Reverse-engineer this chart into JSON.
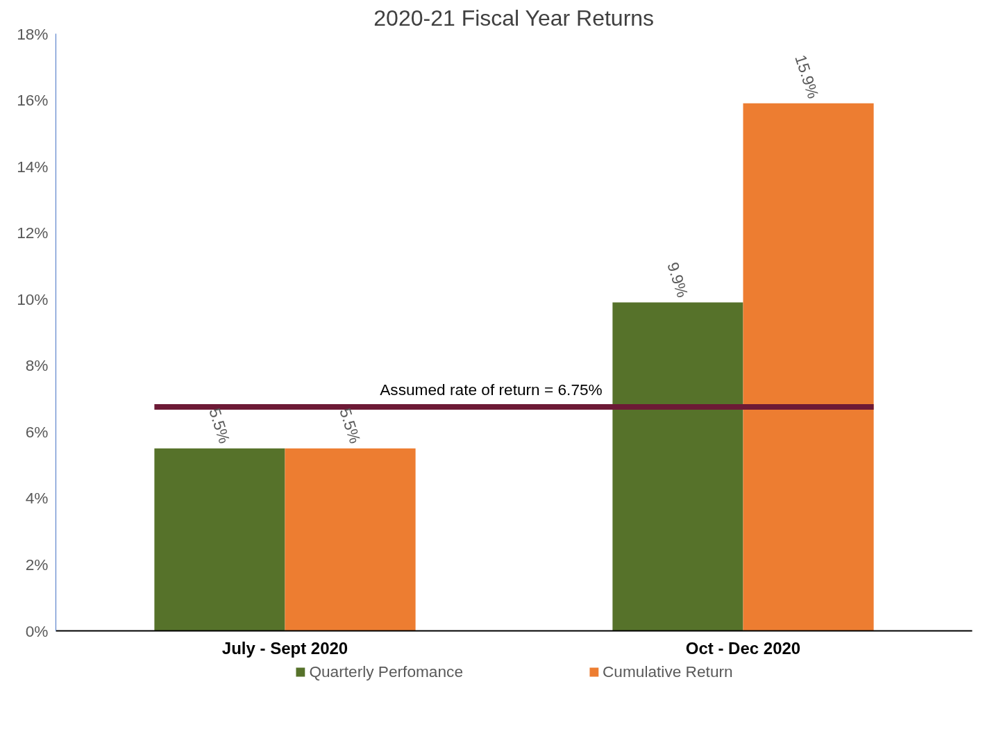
{
  "chart_data": {
    "type": "bar",
    "title": "2020-21 Fiscal Year Returns",
    "categories": [
      "July - Sept 2020",
      "Oct - Dec 2020"
    ],
    "series": [
      {
        "name": "Quarterly Perfomance",
        "color": "#56722a",
        "values": [
          5.5,
          9.9
        ],
        "value_labels": [
          "5.5%",
          "9.9%"
        ]
      },
      {
        "name": "Cumulative Return",
        "color": "#ed7d31",
        "values": [
          5.5,
          15.9
        ],
        "value_labels": [
          "5.5%",
          "15.9%"
        ]
      }
    ],
    "ylim": [
      0,
      18
    ],
    "yticks": [
      {
        "value": 0,
        "label": "0%"
      },
      {
        "value": 2,
        "label": "2%"
      },
      {
        "value": 4,
        "label": "4%"
      },
      {
        "value": 6,
        "label": "6%"
      },
      {
        "value": 8,
        "label": "8%"
      },
      {
        "value": 10,
        "label": "10%"
      },
      {
        "value": 12,
        "label": "12%"
      },
      {
        "value": 14,
        "label": "14%"
      },
      {
        "value": 16,
        "label": "16%"
      },
      {
        "value": 18,
        "label": "18%"
      }
    ],
    "ref_lines": [
      {
        "axis": "y",
        "value": 6.75,
        "label": "Assumed rate of return = 6.75%",
        "color": "#6d1a36"
      }
    ],
    "grid": false,
    "legend": "bottom"
  }
}
